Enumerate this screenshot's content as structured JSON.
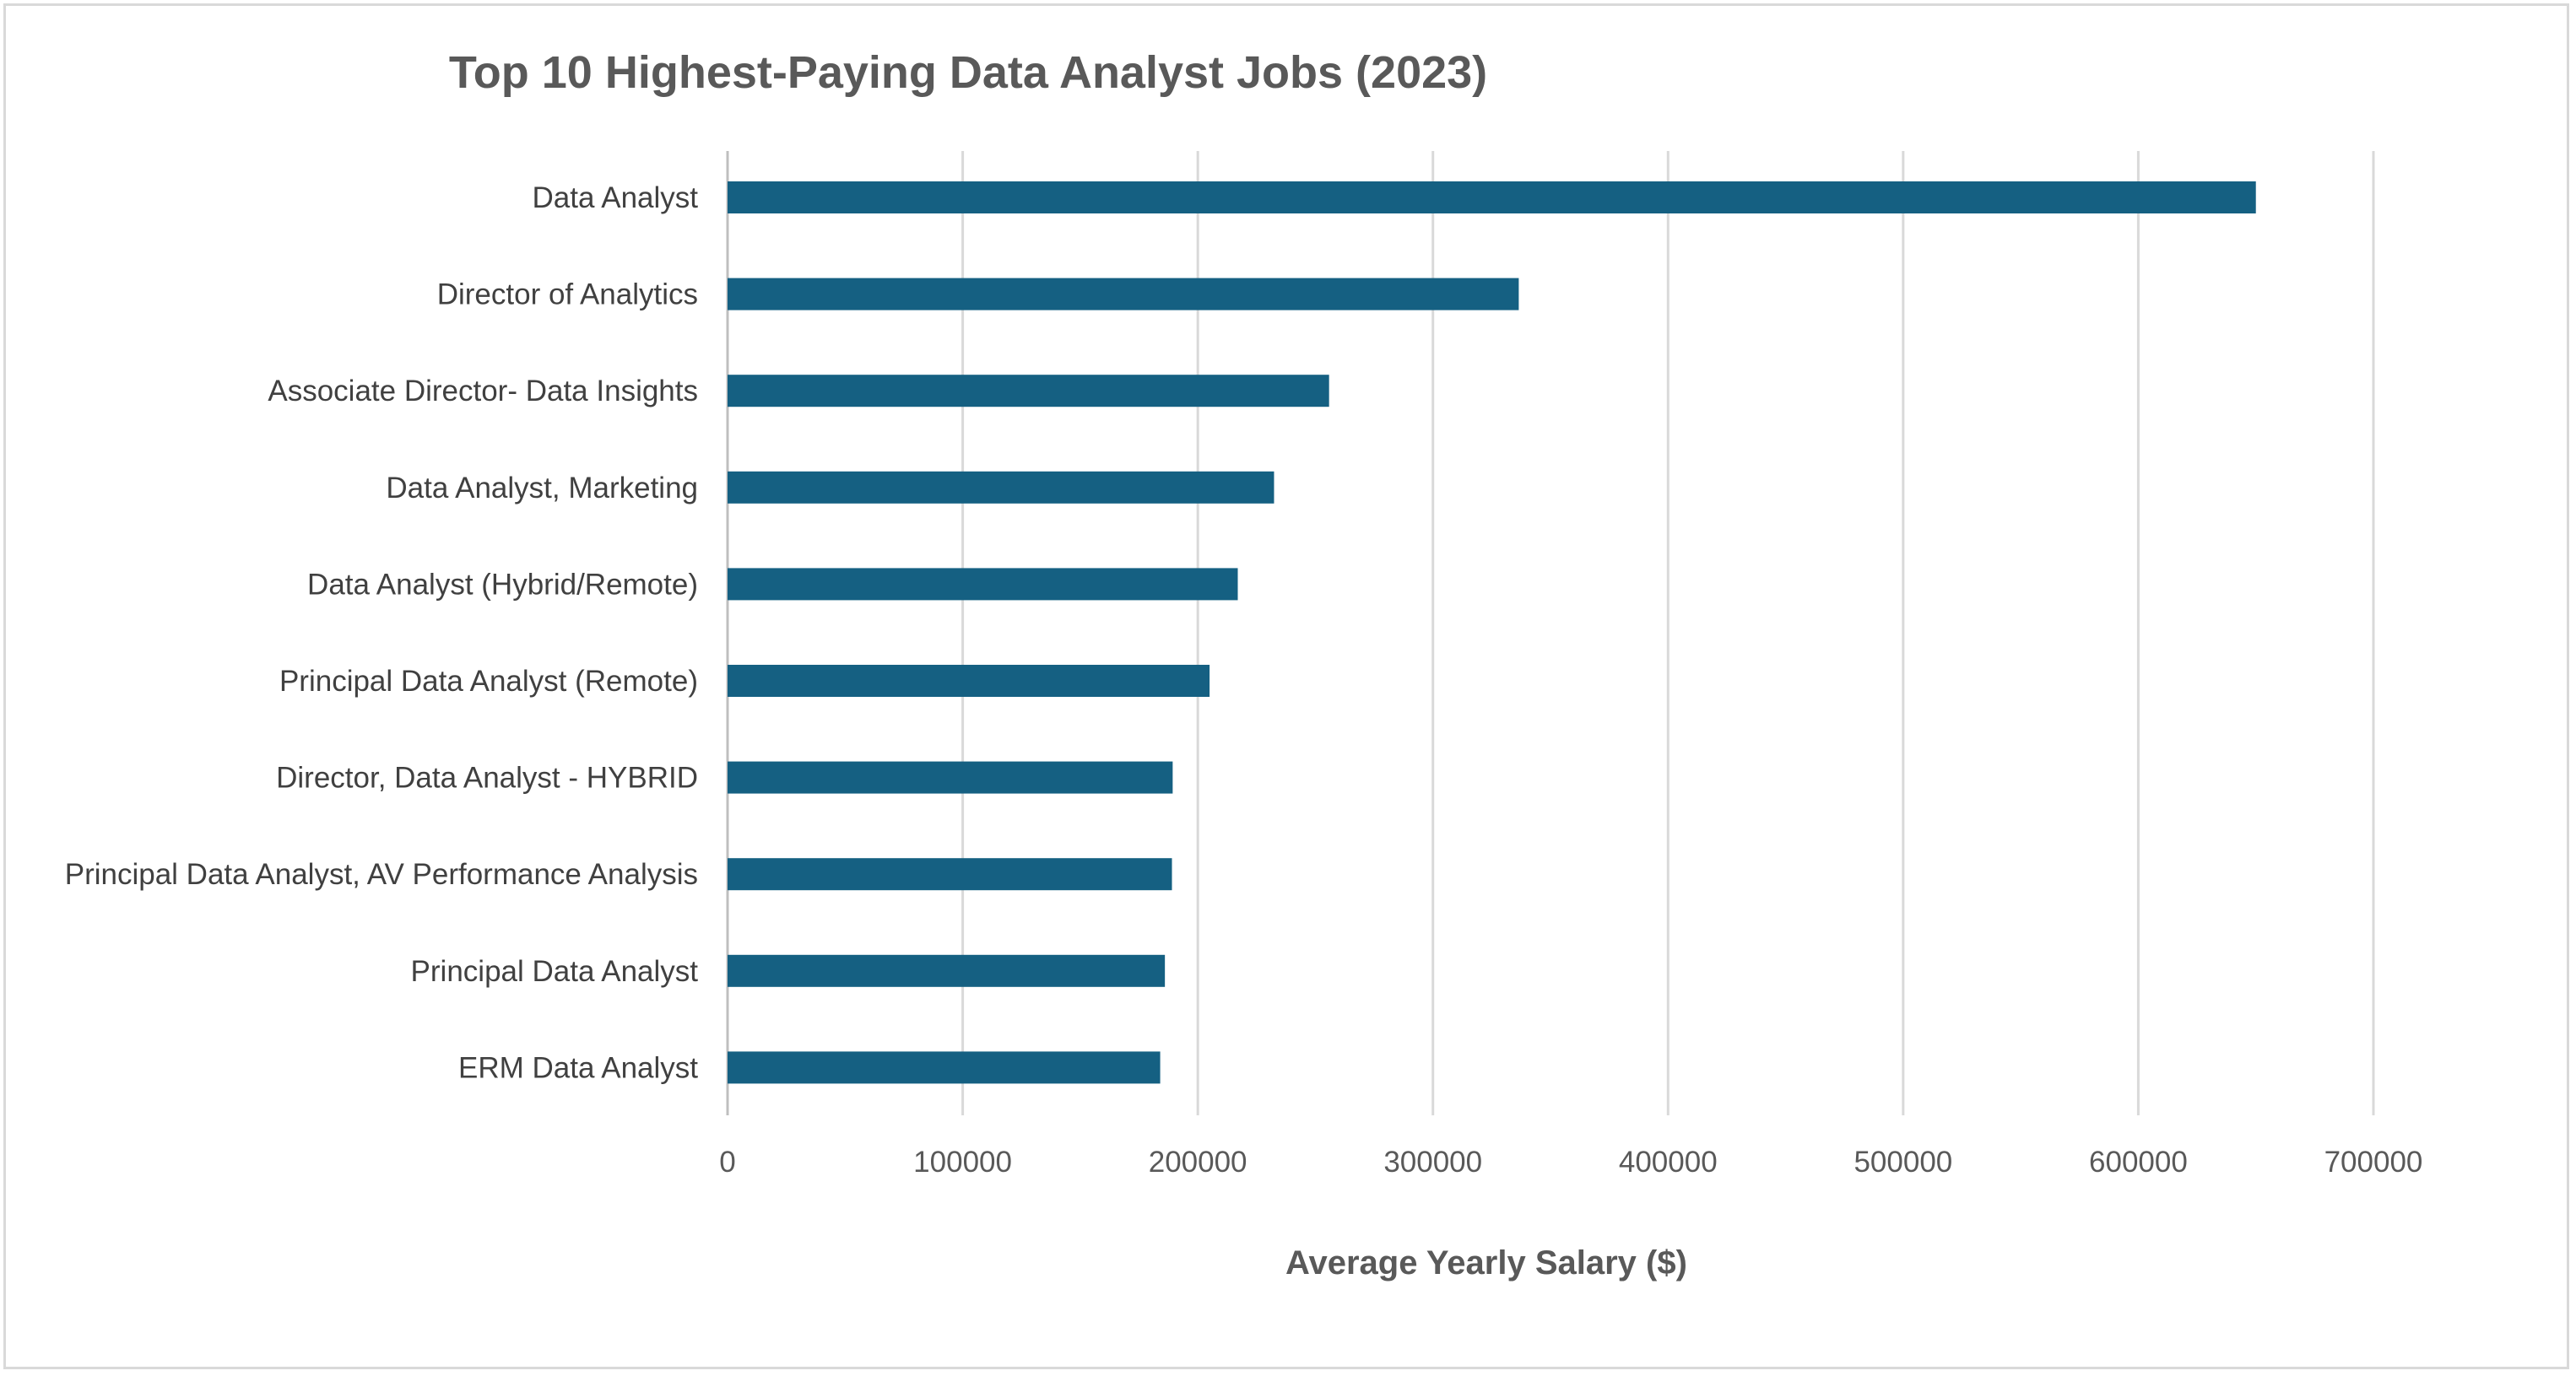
{
  "chart_data": {
    "type": "bar",
    "orientation": "horizontal",
    "title": "Top 10 Highest-Paying Data Analyst Jobs (2023)",
    "xlabel": "Average Yearly Salary ($)",
    "ylabel": "",
    "xlim": [
      0,
      700000
    ],
    "x_ticks": [
      "0",
      "100000",
      "200000",
      "300000",
      "400000",
      "500000",
      "600000",
      "700000"
    ],
    "grid": true,
    "legend": "none",
    "bar_color": "#156082",
    "categories": [
      "Data Analyst",
      "Director of Analytics",
      "Associate Director- Data Insights",
      "Data Analyst, Marketing",
      "Data Analyst (Hybrid/Remote)",
      "Principal Data Analyst (Remote)",
      "Director, Data Analyst - HYBRID",
      "Principal Data Analyst, AV Performance Analysis",
      "Principal Data Analyst",
      "ERM Data Analyst"
    ],
    "values": [
      650000,
      336500,
      255829.5,
      232423,
      217000,
      205000,
      189309,
      189000,
      186000,
      184000
    ]
  }
}
